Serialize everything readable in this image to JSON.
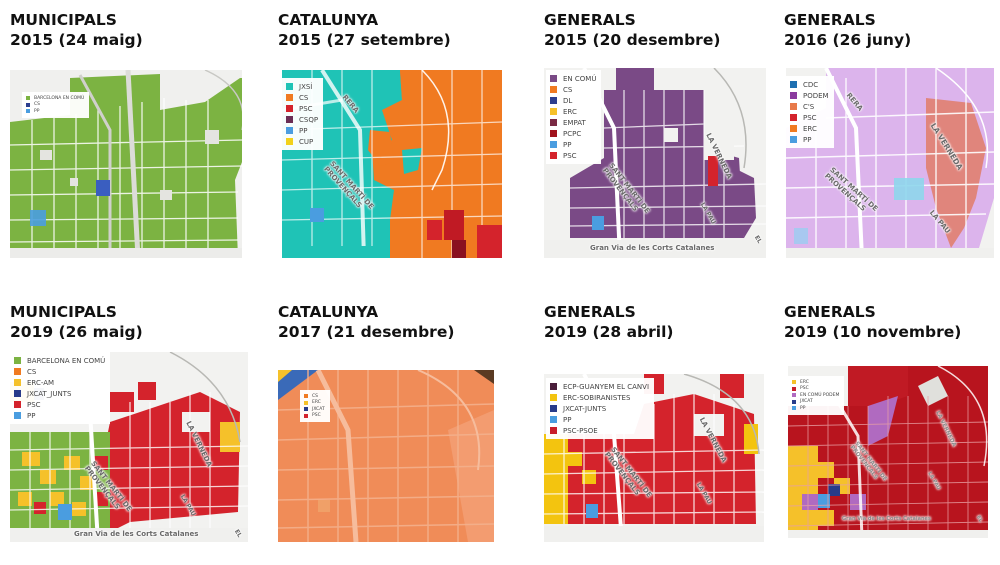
{
  "colors": {
    "bcn_comu": "#7cb342",
    "jxsi": "#1fc3b6",
    "cs": "#f07a21",
    "psc": "#d4232c",
    "csqp": "#6a2d55",
    "pp": "#4a9de0",
    "cup": "#f2d11b",
    "en_comu": "#7a4a86",
    "dl": "#2c3e8f",
    "erc": "#f5c12a",
    "empat": "#7a2a44",
    "pcpc": "#a0121c",
    "cdc": "#1e6fb0",
    "podem": "#8a3a9e",
    "ciudadanos_2016": "#e87a4a",
    "jxcat": "#283b8a",
    "ecp_guanyem": "#4a1e3a",
    "erc_sobiranistes": "#f3c40f",
    "psc_psoe": "#c81e2a",
    "en_comu_podem_2019": "#b06ac0"
  },
  "street_labels": {
    "la_verneda": "LA VERNEDA",
    "sant_marti": "SANT MARTÍ DE PROVENÇALS",
    "gran_via": "Gran Via de les Corts Catalanes",
    "la_pau": "LA PAU",
    "partial_rera": "RERA",
    "partial_el": "EL",
    "la_pau_short": "LA PAU"
  },
  "maps": [
    {
      "id": "municipals-2015",
      "title_line1": "MUNICIPALS",
      "title_line2": "2015 (24 maig)",
      "legend": [
        {
          "label": "BARCELONA EN COMÚ",
          "color": "#7cb342"
        },
        {
          "label": "CS",
          "color": "#2c3e8f"
        },
        {
          "label": "PP",
          "color": "#4a9de0"
        }
      ]
    },
    {
      "id": "catalunya-2015",
      "title_line1": "CATALUNYA",
      "title_line2": "2015 (27 setembre)",
      "legend": [
        {
          "label": "JXSÍ",
          "color": "#1fc3b6"
        },
        {
          "label": "CS",
          "color": "#f07a21"
        },
        {
          "label": "PSC",
          "color": "#d4232c"
        },
        {
          "label": "CSQP",
          "color": "#6a2d55"
        },
        {
          "label": "PP",
          "color": "#4a9de0"
        },
        {
          "label": "CUP",
          "color": "#f2d11b"
        }
      ]
    },
    {
      "id": "generals-2015",
      "title_line1": "GENERALS",
      "title_line2": "2015 (20 desembre)",
      "legend": [
        {
          "label": "EN COMÚ",
          "color": "#7a4a86"
        },
        {
          "label": "CS",
          "color": "#f07a21"
        },
        {
          "label": "DL",
          "color": "#2c3e8f"
        },
        {
          "label": "ERC",
          "color": "#f5c12a"
        },
        {
          "label": "EMPAT",
          "color": "#7a2a44"
        },
        {
          "label": "PCPC",
          "color": "#a0121c"
        },
        {
          "label": "PP",
          "color": "#4a9de0"
        },
        {
          "label": "PSC",
          "color": "#d4232c"
        }
      ]
    },
    {
      "id": "generals-2016",
      "title_line1": "GENERALS",
      "title_line2": "2016 (26 juny)",
      "legend": [
        {
          "label": "CDC",
          "color": "#1e6fb0"
        },
        {
          "label": "PODEM",
          "color": "#8a3a9e"
        },
        {
          "label": "C'S",
          "color": "#e87a4a"
        },
        {
          "label": "PSC",
          "color": "#d4232c"
        },
        {
          "label": "ERC",
          "color": "#f07a21"
        },
        {
          "label": "PP",
          "color": "#4a9de0"
        }
      ]
    },
    {
      "id": "municipals-2019",
      "title_line1": "MUNICIPALS",
      "title_line2": "2019 (26 maig)",
      "legend": [
        {
          "label": "BARCELONA EN COMÚ",
          "color": "#7cb342"
        },
        {
          "label": "CS",
          "color": "#f07a21"
        },
        {
          "label": "ERC-AM",
          "color": "#f5c12a"
        },
        {
          "label": "JXCAT_JUNTS",
          "color": "#283b8a"
        },
        {
          "label": "PSC",
          "color": "#d4232c"
        },
        {
          "label": "PP",
          "color": "#4a9de0"
        }
      ]
    },
    {
      "id": "catalunya-2017",
      "title_line1": "CATALUNYA",
      "title_line2": "2017 (21 desembre)",
      "legend": [
        {
          "label": "CS",
          "color": "#f07a21"
        },
        {
          "label": "ERC",
          "color": "#f5c12a"
        },
        {
          "label": "JXCAT",
          "color": "#283b8a"
        },
        {
          "label": "PSC",
          "color": "#d4232c"
        }
      ]
    },
    {
      "id": "generals-2019-abril",
      "title_line1": "GENERALS",
      "title_line2": "2019 (28 abril)",
      "legend": [
        {
          "label": "ECP-GUANYEM EL CANVI",
          "color": "#4a1e3a"
        },
        {
          "label": "ERC-SOBIRANISTES",
          "color": "#f3c40f"
        },
        {
          "label": "JXCAT-JUNTS",
          "color": "#283b8a"
        },
        {
          "label": "PP",
          "color": "#4a9de0"
        },
        {
          "label": "PSC-PSOE",
          "color": "#c81e2a"
        }
      ]
    },
    {
      "id": "generals-2019-novembre",
      "title_line1": "GENERALS",
      "title_line2": "2019 (10 novembre)",
      "legend": [
        {
          "label": "ERC",
          "color": "#f5c12a"
        },
        {
          "label": "PSC",
          "color": "#c81e2a"
        },
        {
          "label": "EN COMÚ PODEM",
          "color": "#b06ac0"
        },
        {
          "label": "JXCAT",
          "color": "#283b8a"
        },
        {
          "label": "PP",
          "color": "#4a9de0"
        }
      ]
    }
  ]
}
